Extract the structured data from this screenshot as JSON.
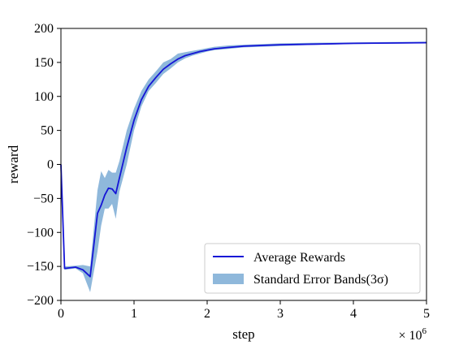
{
  "chart_data": {
    "type": "line",
    "xlabel": "step",
    "ylabel": "reward",
    "x_offset_label": "× 10",
    "x_offset_exponent": "6",
    "xlim": [
      0,
      5
    ],
    "ylim": [
      -200,
      200
    ],
    "x_ticks": [
      0,
      1,
      2,
      3,
      4,
      5
    ],
    "x_tick_labels": [
      "0",
      "1",
      "2",
      "3",
      "4",
      "5"
    ],
    "y_ticks": [
      -200,
      -150,
      -100,
      -50,
      0,
      50,
      100,
      150,
      200
    ],
    "y_tick_labels": [
      "−200",
      "−150",
      "−100",
      "−50",
      "0",
      "50",
      "100",
      "150",
      "200"
    ],
    "grid": false,
    "legend_position": "lower-right",
    "series": [
      {
        "name": "Average Rewards",
        "color": "#1515d6",
        "x": [
          0,
          0.05,
          0.2,
          0.3,
          0.4,
          0.5,
          0.55,
          0.6,
          0.65,
          0.7,
          0.75,
          0.8,
          0.9,
          1.0,
          1.1,
          1.2,
          1.3,
          1.4,
          1.5,
          1.6,
          1.7,
          1.8,
          1.9,
          2.0,
          2.1,
          2.3,
          2.5,
          3.0,
          3.5,
          4.0,
          4.5,
          5.0
        ],
        "y": [
          0,
          -153,
          -151,
          -155,
          -165,
          -72,
          -60,
          -45,
          -35,
          -36,
          -43,
          -20,
          25,
          65,
          95,
          115,
          128,
          140,
          148,
          155,
          160,
          163,
          166,
          168,
          170,
          172,
          174,
          176,
          177,
          178,
          178.5,
          179
        ]
      },
      {
        "name": "Standard Error Bands(3σ)",
        "color": "#8fb8db",
        "x": [
          0,
          0.05,
          0.2,
          0.3,
          0.4,
          0.5,
          0.55,
          0.6,
          0.65,
          0.7,
          0.75,
          0.8,
          0.9,
          1.0,
          1.1,
          1.2,
          1.3,
          1.4,
          1.5,
          1.6,
          1.7,
          1.8,
          1.9,
          2.0,
          2.1,
          2.3,
          2.5,
          3.0,
          3.5,
          4.0,
          4.5,
          5.0
        ],
        "lower": [
          -2,
          -155,
          -153,
          -160,
          -188,
          -128,
          -90,
          -65,
          -65,
          -58,
          -80,
          -40,
          0,
          50,
          85,
          108,
          120,
          133,
          141,
          150,
          156,
          160,
          163,
          166,
          168,
          170,
          172,
          174,
          176,
          177,
          177.5,
          178
        ],
        "upper": [
          2,
          -150,
          -149,
          -148,
          -150,
          -38,
          -10,
          -20,
          -8,
          -12,
          -12,
          5,
          50,
          82,
          108,
          125,
          137,
          150,
          155,
          163,
          165,
          167,
          169,
          171,
          173,
          175,
          176,
          178,
          179,
          179.5,
          180,
          180.5
        ]
      }
    ]
  }
}
